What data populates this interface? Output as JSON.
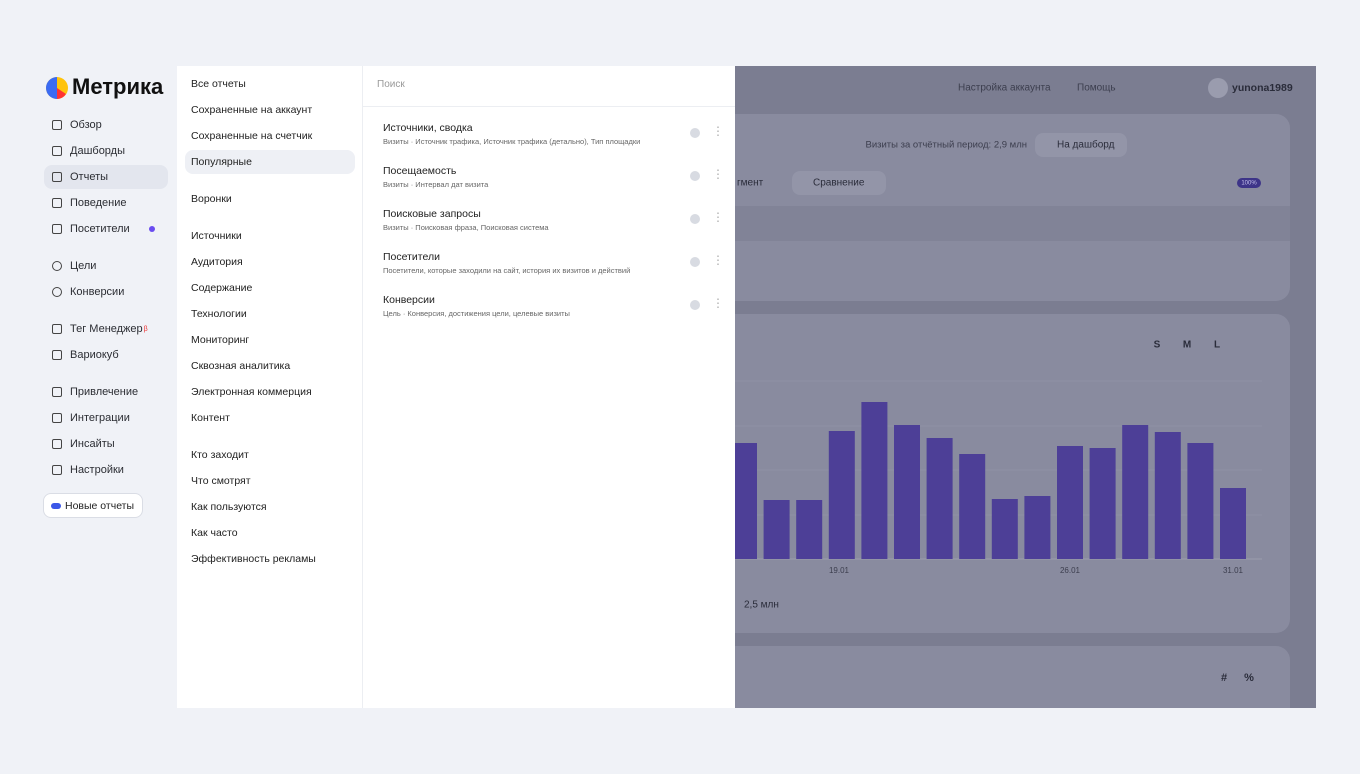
{
  "sidebar": {
    "logo": "Метрика",
    "groups": [
      [
        "Обзор",
        "Дашборды",
        "Отчеты",
        "Поведение",
        "Посетители"
      ],
      [
        "Цели",
        "Конверсии"
      ],
      [
        "Тег Менеджер",
        "Вариокуб"
      ],
      [
        "Привлечение",
        "Интеграции",
        "Инсайты",
        "Настройки"
      ]
    ],
    "beta_badge": "β",
    "new_reports": "Новые отчеты"
  },
  "reports_menu": {
    "groups": [
      [
        "Все отчеты",
        "Сохраненные на аккаунт",
        "Сохраненные на счетчик",
        "Популярные"
      ],
      [
        "Воронки"
      ],
      [
        "Источники",
        "Аудитория",
        "Содержание",
        "Технологии",
        "Мониторинг",
        "Сквозная аналитика",
        "Электронная коммерция",
        "Контент"
      ],
      [
        "Кто заходит",
        "Что смотрят",
        "Как пользуются",
        "Как часто",
        "Эффективность рекламы"
      ]
    ]
  },
  "search": {
    "placeholder": "Поиск"
  },
  "popular_reports": [
    {
      "title": "Источники, сводка",
      "subtitle": "Визиты · Источник трафика, Источник трафика (детально), Тип площадки"
    },
    {
      "title": "Посещаемость",
      "subtitle": "Визиты · Интервал дат визита"
    },
    {
      "title": "Поисковые запросы",
      "subtitle": "Визиты · Поисковая фраза, Поисковая система"
    },
    {
      "title": "Посетители",
      "subtitle": "Посетители, которые заходили на сайт, история их визитов и действий"
    },
    {
      "title": "Конверсии",
      "subtitle": "Цель · Конверсия, достижения цели, целевые визиты"
    }
  ],
  "background": {
    "header": {
      "account_settings": "Настройка аккаунта",
      "help": "Помощь",
      "user": "yunona1989"
    },
    "period_visits": "Визиты за отчётный период: 2,9 млн",
    "to_dashboard": "На дашборд",
    "segment": "гмент",
    "comparison": "Сравнение",
    "accuracy": "100%",
    "sizes": [
      "S",
      "M",
      "L"
    ],
    "total": "2,5 млн",
    "toggles": [
      "#",
      "%"
    ],
    "chart": {
      "type": "bar",
      "x_labels": [
        "19.01",
        "26.01",
        "31.01"
      ],
      "values": [
        116,
        59,
        59,
        128,
        157,
        134,
        121,
        105,
        60,
        63,
        113,
        111,
        134,
        127,
        116,
        71
      ],
      "color": "#4d3f97"
    }
  }
}
